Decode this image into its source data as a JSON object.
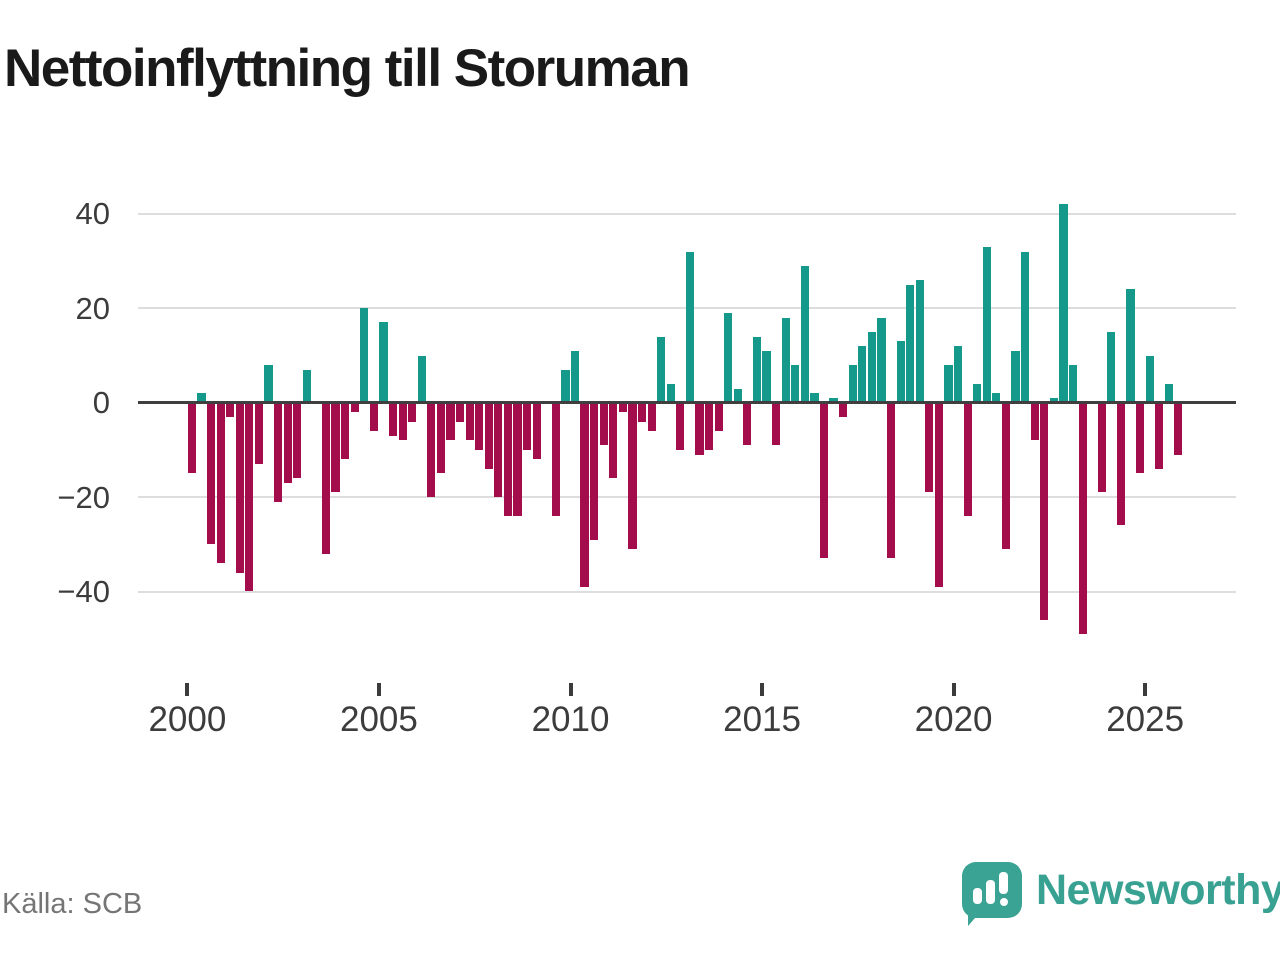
{
  "title": "Nettoinflyttning till Storuman",
  "source": "Källa: SCB",
  "brand": {
    "name": "Newsworthy",
    "icon": "bar-chart-speech-bubble-icon"
  },
  "colors": {
    "positive": "#14998b",
    "negative": "#a40d4b",
    "grid": "#dddddd",
    "zero_line": "#3f3f3f",
    "axis_text": "#3c3c3c",
    "title_text": "#1a1a1a",
    "source_text": "#757575",
    "brand_teal": "#3ba394"
  },
  "chart_data": {
    "type": "bar",
    "title": "Nettoinflyttning till Storuman",
    "frequency": "quarterly",
    "start": "2000-Q1",
    "end": "2025-Q4",
    "values": [
      -15,
      2,
      -30,
      -34,
      -3,
      -36,
      -40,
      -13,
      8,
      -21,
      -17,
      -16,
      7,
      0,
      -32,
      -19,
      -12,
      -2,
      20,
      -6,
      17,
      -7,
      -8,
      -4,
      10,
      -20,
      -15,
      -8,
      -4,
      -8,
      -10,
      -14,
      -20,
      -24,
      -24,
      -10,
      -12,
      0,
      -24,
      7,
      11,
      -39,
      -29,
      -9,
      -16,
      -2,
      -31,
      -4,
      -6,
      14,
      4,
      -10,
      32,
      -11,
      -10,
      -6,
      19,
      3,
      -9,
      14,
      11,
      -9,
      18,
      8,
      29,
      2,
      -33,
      1,
      -3,
      8,
      12,
      15,
      18,
      -33,
      13,
      25,
      26,
      -19,
      -39,
      8,
      12,
      -24,
      4,
      33,
      2,
      -31,
      11,
      32,
      -8,
      -46,
      1,
      42,
      8,
      -49,
      0,
      -19,
      15,
      -26,
      24,
      -15,
      10,
      -14,
      4,
      -11
    ],
    "years": [
      2000,
      2001,
      2002,
      2003,
      2004,
      2005,
      2006,
      2007,
      2008,
      2009,
      2010,
      2011,
      2012,
      2013,
      2014,
      2015,
      2016,
      2017,
      2018,
      2019,
      2020,
      2021,
      2022,
      2023,
      2024,
      2025
    ],
    "x_tick_labels": [
      "2000",
      "2005",
      "2010",
      "2015",
      "2020",
      "2025"
    ],
    "y_tick_values": [
      40,
      20,
      0,
      -20,
      -40
    ],
    "y_tick_labels": [
      "40",
      "20",
      "0",
      "−20",
      "−40"
    ],
    "ylim": [
      -52,
      45
    ],
    "grid": true,
    "legend": "none"
  }
}
